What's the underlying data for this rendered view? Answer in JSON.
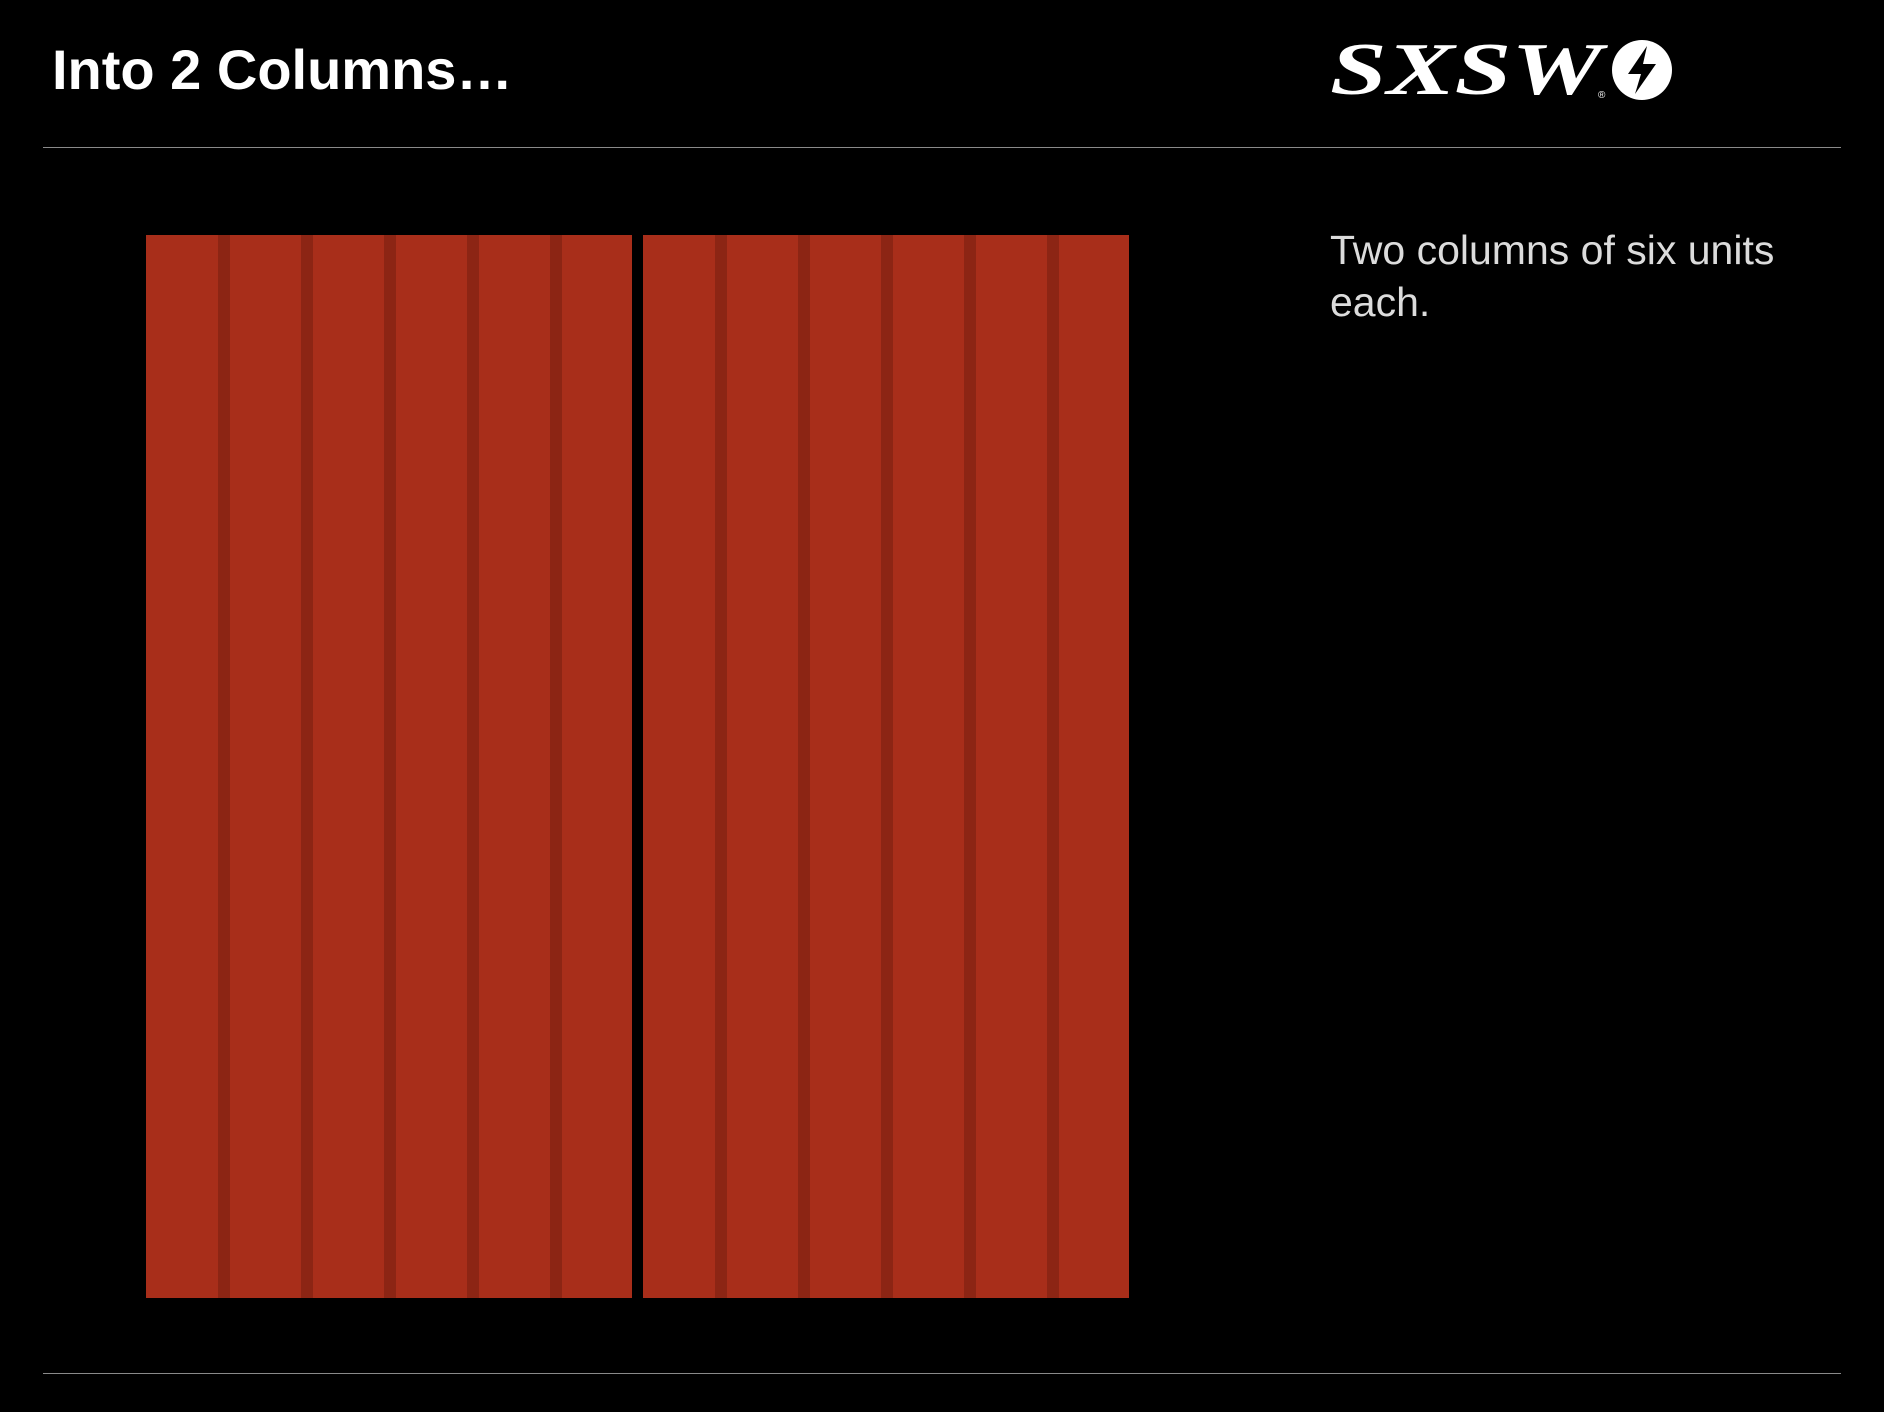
{
  "slide": {
    "title": "Into 2 Columns…",
    "description": "Two columns of six units each."
  },
  "logo": {
    "text": "SXSW",
    "icon": "lightning-bolt-circle-icon",
    "trademark": "®"
  },
  "colors": {
    "background": "#000000",
    "column_fill": "#a82e1a",
    "gutter_fill": "#8c2514",
    "rule": "#8a8a8a",
    "title_text": "#ffffff",
    "body_text": "#dcdcdc"
  },
  "diagram": {
    "columns": 2,
    "units_per_column": 6
  }
}
